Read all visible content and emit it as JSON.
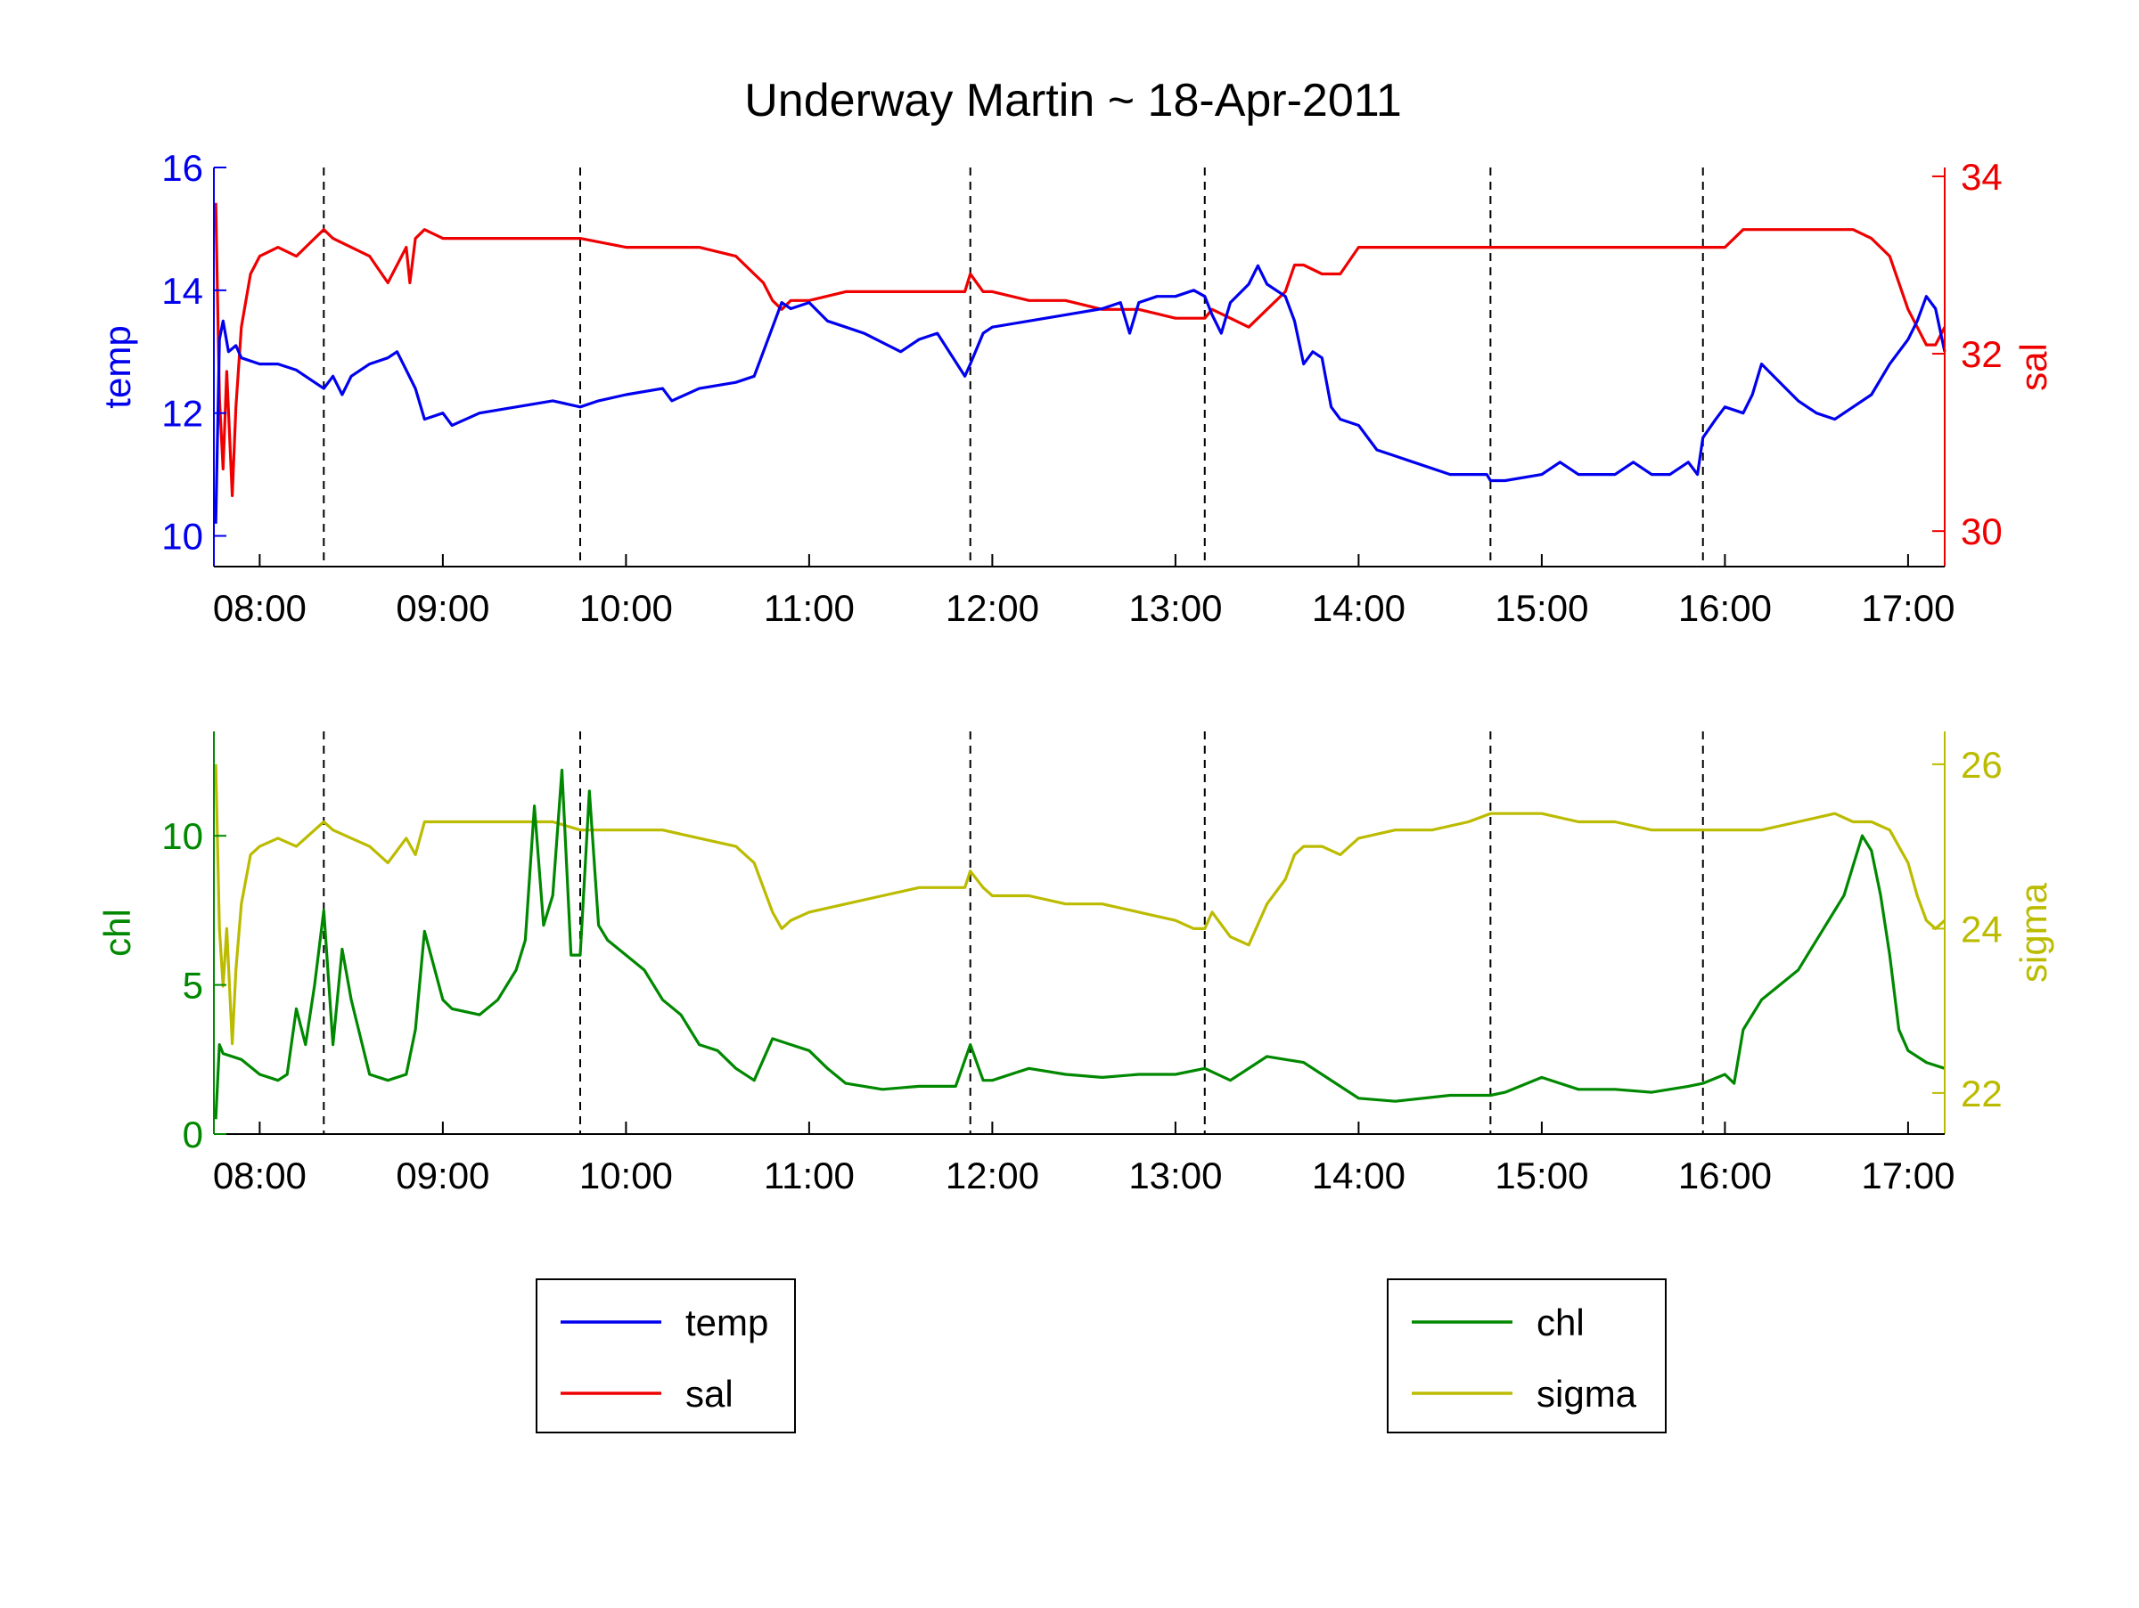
{
  "title": "Underway Martin ~ 18-Apr-2011",
  "colors": {
    "temp": "#0000ee",
    "sal": "#ee0000",
    "chl": "#008800",
    "sigma": "#bbbb00",
    "axis": "#000000"
  },
  "x_ticks": [
    "08:00",
    "09:00",
    "10:00",
    "11:00",
    "12:00",
    "13:00",
    "14:00",
    "15:00",
    "16:00",
    "17:00"
  ],
  "legend_top": [
    "temp",
    "sal"
  ],
  "legend_bottom": [
    "chl",
    "sigma"
  ],
  "chart_data": [
    {
      "type": "line",
      "panel": "top",
      "x_unit": "hours",
      "xlim": [
        7.75,
        17.2
      ],
      "vertical_dashed_lines": [
        8.35,
        9.75,
        11.88,
        13.16,
        14.72,
        15.88
      ],
      "left_axis": {
        "label": "temp",
        "ylim": [
          9.5,
          16
        ],
        "ticks": [
          10,
          12,
          14,
          16
        ]
      },
      "right_axis": {
        "label": "sal",
        "ylim": [
          29.6,
          34.1
        ],
        "ticks": [
          30,
          32,
          34
        ]
      },
      "series": [
        {
          "name": "temp",
          "axis": "left",
          "x": [
            7.76,
            7.78,
            7.8,
            7.83,
            7.87,
            7.9,
            8.0,
            8.1,
            8.2,
            8.3,
            8.35,
            8.4,
            8.45,
            8.5,
            8.6,
            8.7,
            8.75,
            8.8,
            8.85,
            8.9,
            9.0,
            9.05,
            9.2,
            9.4,
            9.6,
            9.75,
            9.85,
            10.0,
            10.2,
            10.25,
            10.4,
            10.6,
            10.7,
            10.75,
            10.8,
            10.85,
            10.9,
            11.0,
            11.1,
            11.2,
            11.3,
            11.5,
            11.6,
            11.7,
            11.85,
            11.88,
            11.95,
            12.0,
            12.2,
            12.4,
            12.6,
            12.7,
            12.75,
            12.8,
            12.9,
            13.0,
            13.1,
            13.16,
            13.2,
            13.25,
            13.3,
            13.4,
            13.45,
            13.5,
            13.6,
            13.65,
            13.7,
            13.75,
            13.8,
            13.85,
            13.9,
            14.0,
            14.1,
            14.2,
            14.3,
            14.5,
            14.7,
            14.72,
            14.8,
            15.0,
            15.1,
            15.2,
            15.3,
            15.4,
            15.5,
            15.6,
            15.7,
            15.8,
            15.85,
            15.88,
            15.95,
            16.0,
            16.1,
            16.15,
            16.2,
            16.3,
            16.4,
            16.5,
            16.6,
            16.7,
            16.8,
            16.9,
            17.0,
            17.05,
            17.1,
            17.15,
            17.2
          ],
          "y": [
            10.2,
            13.2,
            13.5,
            13.0,
            13.1,
            12.9,
            12.8,
            12.8,
            12.7,
            12.5,
            12.4,
            12.6,
            12.3,
            12.6,
            12.8,
            12.9,
            13.0,
            12.7,
            12.4,
            11.9,
            12.0,
            11.8,
            12.0,
            12.1,
            12.2,
            12.1,
            12.2,
            12.3,
            12.4,
            12.2,
            12.4,
            12.5,
            12.6,
            13.0,
            13.4,
            13.8,
            13.7,
            13.8,
            13.5,
            13.4,
            13.3,
            13.0,
            13.2,
            13.3,
            12.6,
            12.8,
            13.3,
            13.4,
            13.5,
            13.6,
            13.7,
            13.8,
            13.3,
            13.8,
            13.9,
            13.9,
            14.0,
            13.9,
            13.6,
            13.3,
            13.8,
            14.1,
            14.4,
            14.1,
            13.9,
            13.5,
            12.8,
            13.0,
            12.9,
            12.1,
            11.9,
            11.8,
            11.4,
            11.3,
            11.2,
            11.0,
            11.0,
            10.9,
            10.9,
            11.0,
            11.2,
            11.0,
            11.0,
            11.0,
            11.2,
            11.0,
            11.0,
            11.2,
            11.0,
            11.6,
            11.9,
            12.1,
            12.0,
            12.3,
            12.8,
            12.5,
            12.2,
            12.0,
            11.9,
            12.1,
            12.3,
            12.8,
            13.2,
            13.5,
            13.9,
            13.7,
            13.0
          ]
        },
        {
          "name": "sal",
          "axis": "right",
          "x": [
            7.76,
            7.78,
            7.8,
            7.82,
            7.85,
            7.87,
            7.9,
            7.95,
            8.0,
            8.1,
            8.2,
            8.3,
            8.35,
            8.4,
            8.5,
            8.6,
            8.7,
            8.8,
            8.82,
            8.85,
            8.9,
            9.0,
            9.2,
            9.4,
            9.6,
            9.75,
            10.0,
            10.2,
            10.4,
            10.6,
            10.7,
            10.75,
            10.8,
            10.85,
            10.9,
            11.0,
            11.2,
            11.4,
            11.6,
            11.85,
            11.88,
            11.95,
            12.0,
            12.2,
            12.4,
            12.6,
            12.8,
            13.0,
            13.1,
            13.16,
            13.2,
            13.3,
            13.4,
            13.5,
            13.6,
            13.65,
            13.7,
            13.8,
            13.9,
            14.0,
            14.2,
            14.4,
            14.6,
            14.72,
            14.8,
            15.0,
            15.2,
            15.4,
            15.6,
            15.8,
            15.88,
            16.0,
            16.1,
            16.15,
            16.2,
            16.4,
            16.6,
            16.7,
            16.8,
            16.9,
            17.0,
            17.05,
            17.1,
            17.15,
            17.2
          ],
          "y": [
            33.7,
            31.5,
            30.7,
            31.8,
            30.4,
            31.4,
            32.3,
            32.9,
            33.1,
            33.2,
            33.1,
            33.3,
            33.4,
            33.3,
            33.2,
            33.1,
            32.8,
            33.2,
            32.8,
            33.3,
            33.4,
            33.3,
            33.3,
            33.3,
            33.3,
            33.3,
            33.2,
            33.2,
            33.2,
            33.1,
            32.9,
            32.8,
            32.6,
            32.5,
            32.6,
            32.6,
            32.7,
            32.7,
            32.7,
            32.7,
            32.9,
            32.7,
            32.7,
            32.6,
            32.6,
            32.5,
            32.5,
            32.4,
            32.4,
            32.4,
            32.5,
            32.4,
            32.3,
            32.5,
            32.7,
            33.0,
            33.0,
            32.9,
            32.9,
            33.2,
            33.2,
            33.2,
            33.2,
            33.2,
            33.2,
            33.2,
            33.2,
            33.2,
            33.2,
            33.2,
            33.2,
            33.2,
            33.4,
            33.4,
            33.4,
            33.4,
            33.4,
            33.4,
            33.3,
            33.1,
            32.5,
            32.3,
            32.1,
            32.1,
            32.3
          ]
        }
      ]
    },
    {
      "type": "line",
      "panel": "bottom",
      "x_unit": "hours",
      "xlim": [
        7.75,
        17.2
      ],
      "vertical_dashed_lines": [
        8.35,
        9.75,
        11.88,
        13.16,
        14.72,
        15.88
      ],
      "left_axis": {
        "label": "chl",
        "ylim": [
          0,
          13.5
        ],
        "ticks": [
          0,
          5,
          10
        ]
      },
      "right_axis": {
        "label": "sigma",
        "ylim": [
          21.5,
          26.4
        ],
        "ticks": [
          22,
          24,
          26
        ]
      },
      "series": [
        {
          "name": "chl",
          "axis": "left",
          "x": [
            7.76,
            7.78,
            7.8,
            7.9,
            8.0,
            8.1,
            8.15,
            8.2,
            8.25,
            8.3,
            8.35,
            8.4,
            8.45,
            8.5,
            8.6,
            8.7,
            8.8,
            8.85,
            8.9,
            9.0,
            9.05,
            9.2,
            9.3,
            9.4,
            9.45,
            9.5,
            9.55,
            9.6,
            9.65,
            9.7,
            9.75,
            9.8,
            9.85,
            9.9,
            10.0,
            10.1,
            10.2,
            10.3,
            10.4,
            10.5,
            10.6,
            10.7,
            10.75,
            10.8,
            10.9,
            11.0,
            11.1,
            11.2,
            11.4,
            11.6,
            11.8,
            11.88,
            11.95,
            12.0,
            12.2,
            12.4,
            12.6,
            12.8,
            13.0,
            13.16,
            13.3,
            13.5,
            13.6,
            13.7,
            13.8,
            13.9,
            14.0,
            14.2,
            14.5,
            14.72,
            14.8,
            15.0,
            15.2,
            15.4,
            15.6,
            15.8,
            15.88,
            16.0,
            16.05,
            16.1,
            16.2,
            16.3,
            16.4,
            16.5,
            16.6,
            16.65,
            16.7,
            16.75,
            16.8,
            16.85,
            16.9,
            16.95,
            17.0,
            17.1,
            17.2
          ],
          "y": [
            0.5,
            3.0,
            2.7,
            2.5,
            2.0,
            1.8,
            2.0,
            4.2,
            3.0,
            5.0,
            7.5,
            3.0,
            6.2,
            4.5,
            2.0,
            1.8,
            2.0,
            3.5,
            6.8,
            4.5,
            4.2,
            4.0,
            4.5,
            5.5,
            6.5,
            11.0,
            7.0,
            8.0,
            12.2,
            6.0,
            6.0,
            11.5,
            7.0,
            6.5,
            6.0,
            5.5,
            4.5,
            4.0,
            3.0,
            2.8,
            2.2,
            1.8,
            2.5,
            3.2,
            3.0,
            2.8,
            2.2,
            1.7,
            1.5,
            1.6,
            1.6,
            3.0,
            1.8,
            1.8,
            2.2,
            2.0,
            1.9,
            2.0,
            2.0,
            2.2,
            1.8,
            2.6,
            2.5,
            2.4,
            2.0,
            1.6,
            1.2,
            1.1,
            1.3,
            1.3,
            1.4,
            1.9,
            1.5,
            1.5,
            1.4,
            1.6,
            1.7,
            2.0,
            1.7,
            3.5,
            4.5,
            5.0,
            5.5,
            6.5,
            7.5,
            8.0,
            9.0,
            10.0,
            9.5,
            8.0,
            6.0,
            3.5,
            2.8,
            2.4,
            2.2
          ]
        },
        {
          "name": "sigma",
          "axis": "right",
          "x": [
            7.76,
            7.78,
            7.8,
            7.82,
            7.85,
            7.87,
            7.9,
            7.95,
            8.0,
            8.1,
            8.2,
            8.3,
            8.35,
            8.4,
            8.5,
            8.6,
            8.7,
            8.8,
            8.85,
            8.9,
            9.0,
            9.2,
            9.4,
            9.6,
            9.75,
            10.0,
            10.2,
            10.4,
            10.6,
            10.7,
            10.75,
            10.8,
            10.85,
            10.9,
            11.0,
            11.2,
            11.4,
            11.6,
            11.85,
            11.88,
            11.95,
            12.0,
            12.2,
            12.4,
            12.6,
            12.8,
            13.0,
            13.1,
            13.16,
            13.2,
            13.3,
            13.4,
            13.5,
            13.6,
            13.65,
            13.7,
            13.8,
            13.9,
            14.0,
            14.2,
            14.4,
            14.6,
            14.72,
            14.8,
            15.0,
            15.2,
            15.4,
            15.6,
            15.8,
            15.88,
            16.0,
            16.2,
            16.4,
            16.6,
            16.7,
            16.8,
            16.9,
            17.0,
            17.05,
            17.1,
            17.15,
            17.2
          ],
          "y": [
            26.0,
            24.0,
            23.3,
            24.0,
            22.6,
            23.5,
            24.3,
            24.9,
            25.0,
            25.1,
            25.0,
            25.2,
            25.3,
            25.2,
            25.1,
            25.0,
            24.8,
            25.1,
            24.9,
            25.3,
            25.3,
            25.3,
            25.3,
            25.3,
            25.2,
            25.2,
            25.2,
            25.1,
            25.0,
            24.8,
            24.5,
            24.2,
            24.0,
            24.1,
            24.2,
            24.3,
            24.4,
            24.5,
            24.5,
            24.7,
            24.5,
            24.4,
            24.4,
            24.3,
            24.3,
            24.2,
            24.1,
            24.0,
            24.0,
            24.2,
            23.9,
            23.8,
            24.3,
            24.6,
            24.9,
            25.0,
            25.0,
            24.9,
            25.1,
            25.2,
            25.2,
            25.3,
            25.4,
            25.4,
            25.4,
            25.3,
            25.3,
            25.2,
            25.2,
            25.2,
            25.2,
            25.2,
            25.3,
            25.4,
            25.3,
            25.3,
            25.2,
            24.8,
            24.4,
            24.1,
            24.0,
            24.1
          ]
        }
      ]
    }
  ]
}
